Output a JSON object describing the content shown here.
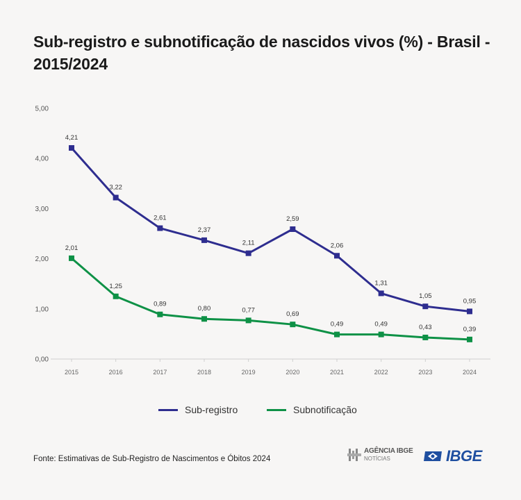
{
  "title": "Sub-registro e subnotificação de nascidos vivos (%) - Brasil - 2015/2024",
  "footer": {
    "source": "Fonte: Estimativas de Sub-Registro de Nascimentos e Óbitos 2024",
    "agencia_top": "AGÊNCIA IBGE",
    "agencia_bottom": "NOTÍCIAS",
    "ibge_logo": "IBGE"
  },
  "colors": {
    "sub_registro": "#2e2d8f",
    "subnotificacao": "#0e9146",
    "ibge_blue": "#1f4fa0"
  },
  "chart_data": {
    "type": "line",
    "categories": [
      "2015",
      "2016",
      "2017",
      "2018",
      "2019",
      "2020",
      "2021",
      "2022",
      "2023",
      "2024"
    ],
    "series": [
      {
        "name": "Sub-registro",
        "values": [
          4.21,
          3.22,
          2.61,
          2.37,
          2.11,
          2.59,
          2.06,
          1.31,
          1.05,
          0.95
        ],
        "labels": [
          "4,21",
          "3,22",
          "2,61",
          "2,37",
          "2,11",
          "2,59",
          "2,06",
          "1,31",
          "1,05",
          "0,95"
        ]
      },
      {
        "name": "Subnotificação",
        "values": [
          2.01,
          1.25,
          0.89,
          0.8,
          0.77,
          0.69,
          0.49,
          0.49,
          0.43,
          0.39
        ],
        "labels": [
          "2,01",
          "1,25",
          "0,89",
          "0,80",
          "0,77",
          "0,69",
          "0,49",
          "0,49",
          "0,43",
          "0,39"
        ]
      }
    ],
    "yticks": [
      0,
      1,
      2,
      3,
      4,
      5
    ],
    "ytick_labels": [
      "0,00",
      "1,00",
      "2,00",
      "3,00",
      "4,00",
      "5,00"
    ],
    "ylim": [
      0,
      5
    ],
    "grid": false,
    "legend": "bottom-center",
    "xlabel": "",
    "ylabel": ""
  }
}
